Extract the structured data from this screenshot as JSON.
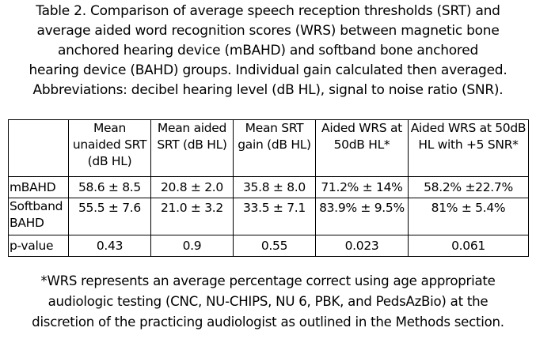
{
  "caption": {
    "lines": [
      "Table 2. Comparison of average speech reception thresholds (SRT) and",
      "average aided word recognition scores (WRS) between magnetic bone",
      "anchored hearing device (mBAHD) and softband bone anchored",
      "hearing device (BAHD) groups. Individual gain calculated then averaged.",
      "Abbreviations: decibel hearing level (dB HL), signal to noise ratio (SNR)."
    ]
  },
  "table": {
    "headers": [
      "",
      "Mean unaided SRT (dB HL)",
      "Mean aided SRT (dB HL)",
      "Mean SRT gain (dB HL)",
      "Aided WRS at 50dB HL*",
      "Aided WRS at 50dB HL with +5 SNR*"
    ],
    "rows": [
      {
        "label": "mBAHD",
        "cells": [
          "58.6 ± 8.5",
          "20.8 ± 2.0",
          "35.8 ± 8.0",
          "71.2% ± 14%",
          "58.2% ±22.7%"
        ]
      },
      {
        "label": "Softband BAHD",
        "cells": [
          "55.5 ± 7.6",
          "21.0 ± 3.2",
          "33.5 ± 7.1",
          "83.9% ± 9.5%",
          "81% ± 5.4%"
        ]
      },
      {
        "label": "p-value",
        "cells": [
          "0.43",
          "0.9",
          "0.55",
          "0.023",
          "0.061"
        ]
      }
    ]
  },
  "footnote": {
    "lines": [
      "*WRS represents an average percentage correct using age appropriate",
      "audiologic testing (CNC, NU-CHIPS, NU 6, PBK, and PedsAzBio) at the",
      "discretion of the practicing audiologist as outlined in the Methods section."
    ]
  }
}
